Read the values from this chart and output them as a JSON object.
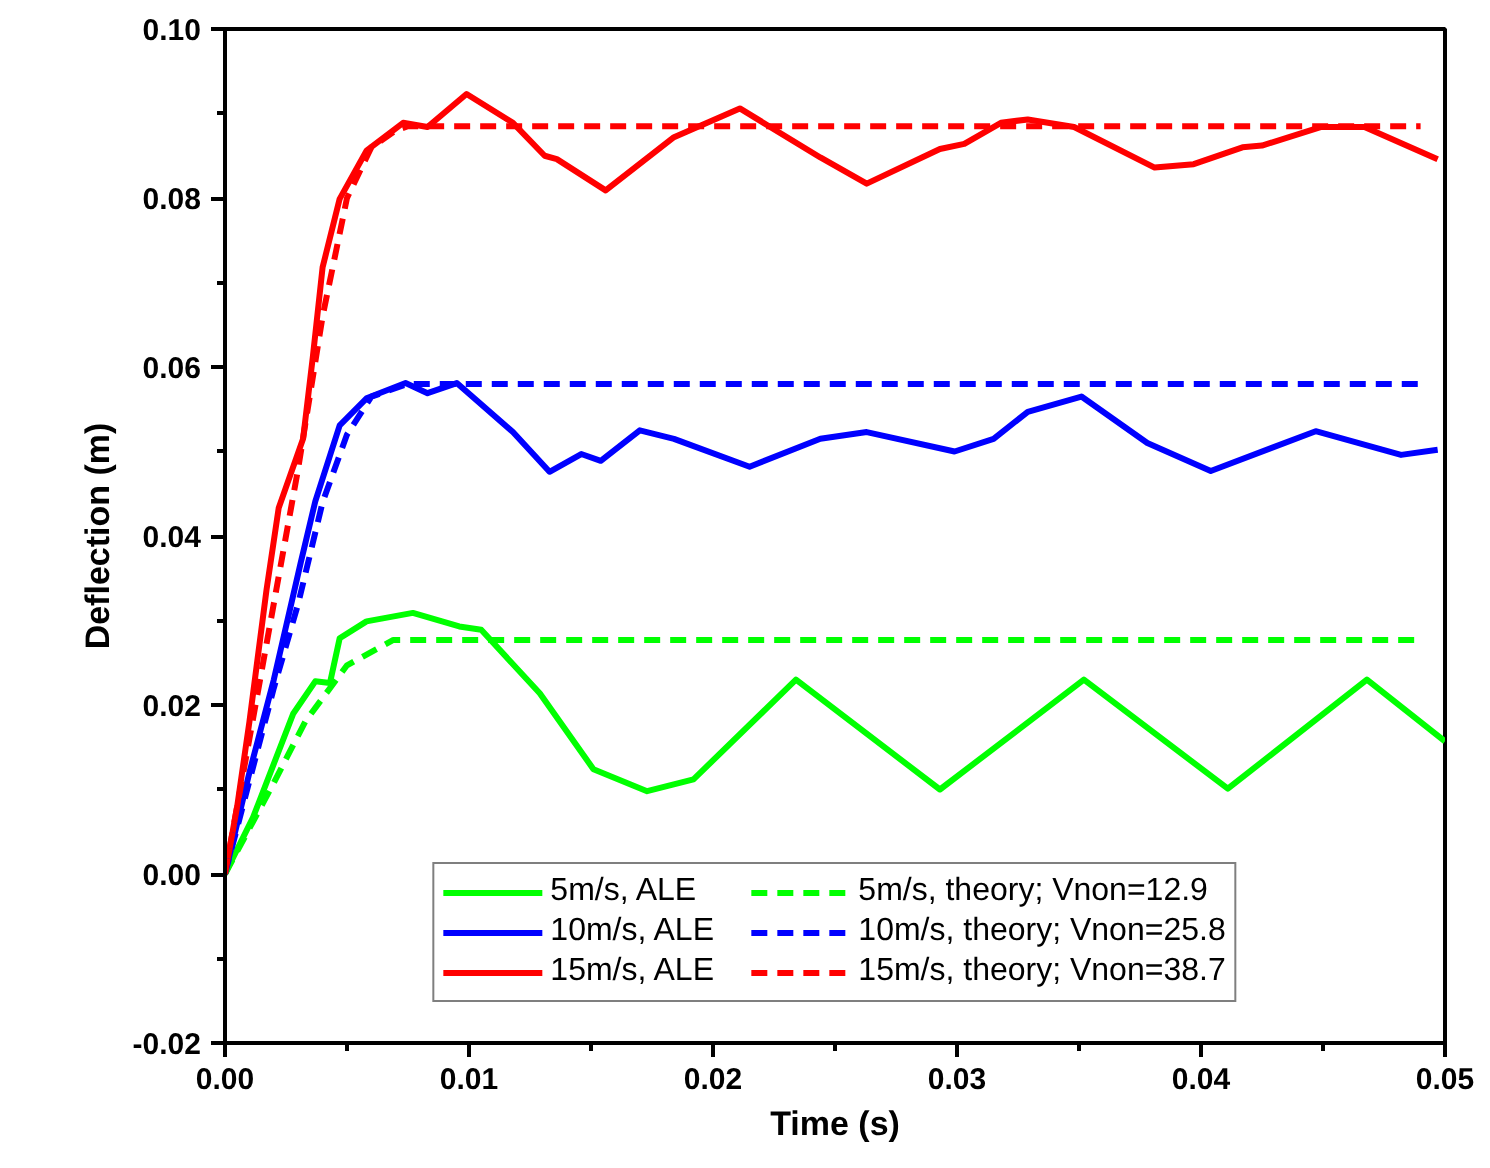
{
  "chart_data": {
    "type": "line",
    "xlabel": "Time (s)",
    "ylabel": "Deflection (m)",
    "xlim": [
      0,
      0.05
    ],
    "ylim": [
      -0.02,
      0.1
    ],
    "xticks": [
      {
        "value": 0,
        "label": "0.00"
      },
      0.01,
      0.02,
      0.03,
      0.04,
      0.05
    ],
    "yticks": [
      {
        "value": -0.02,
        "label": "-0.02"
      },
      {
        "value": 0,
        "label": "0.00"
      },
      0.02,
      0.04,
      0.06,
      0.08,
      {
        "value": 0.1,
        "label": "0.10"
      }
    ],
    "grid": false,
    "legend": "bottom",
    "marker": "none",
    "series": [
      {
        "name": "5m/s, ALE",
        "color": "#00ff00",
        "line_style": "solid",
        "x": [
          0,
          0.00115,
          0.0028,
          0.0037,
          0.0043,
          0.0047,
          0.0058,
          0.0077,
          0.0096,
          0.0105,
          0.0129,
          0.0151,
          0.0173,
          0.0192,
          0.0234,
          0.0293,
          0.0352,
          0.0411,
          0.0468,
          0.05
        ],
        "values": [
          0,
          0.0067,
          0.019,
          0.0228,
          0.0226,
          0.0279,
          0.0299,
          0.0309,
          0.0293,
          0.0289,
          0.0214,
          0.0124,
          0.0098,
          0.0112,
          0.023,
          0.01,
          0.023,
          0.0101,
          0.023,
          0.0157
        ]
      },
      {
        "name": "10m/s, ALE",
        "color": "#0000ff",
        "line_style": "solid",
        "x": [
          0,
          0.001,
          0.002,
          0.0031,
          0.0037,
          0.0047,
          0.0058,
          0.0074,
          0.0083,
          0.0095,
          0.0118,
          0.0133,
          0.0146,
          0.0154,
          0.017,
          0.0184,
          0.0215,
          0.0244,
          0.0263,
          0.0299,
          0.0315,
          0.0329,
          0.0351,
          0.0378,
          0.0404,
          0.0447,
          0.0482,
          0.0497
        ],
        "values": [
          0,
          0.012,
          0.023,
          0.0368,
          0.0441,
          0.0531,
          0.0563,
          0.0581,
          0.0569,
          0.0581,
          0.0523,
          0.0476,
          0.0497,
          0.0489,
          0.0525,
          0.0515,
          0.0482,
          0.0515,
          0.0523,
          0.05,
          0.0515,
          0.0547,
          0.0565,
          0.051,
          0.0477,
          0.0524,
          0.0496,
          0.0502
        ]
      },
      {
        "name": "15m/s, ALE",
        "color": "#ff0000",
        "line_style": "solid",
        "x": [
          0,
          0.0005,
          0.001,
          0.0017,
          0.0022,
          0.0032,
          0.0036,
          0.004,
          0.0047,
          0.0058,
          0.0073,
          0.0083,
          0.0099,
          0.0118,
          0.0131,
          0.0136,
          0.0156,
          0.0184,
          0.0211,
          0.0244,
          0.0263,
          0.0293,
          0.0303,
          0.0318,
          0.0329,
          0.0348,
          0.0381,
          0.0397,
          0.0417,
          0.0425,
          0.0449,
          0.0467,
          0.0497
        ],
        "values": [
          0,
          0.008,
          0.018,
          0.0336,
          0.0433,
          0.0515,
          0.0612,
          0.0718,
          0.0799,
          0.0856,
          0.0889,
          0.0884,
          0.0923,
          0.0889,
          0.085,
          0.0846,
          0.0809,
          0.0872,
          0.0906,
          0.0848,
          0.0817,
          0.0858,
          0.0864,
          0.0889,
          0.0893,
          0.0884,
          0.0836,
          0.084,
          0.086,
          0.0862,
          0.0884,
          0.0884,
          0.0846
        ]
      },
      {
        "name": "5m/s, theory; Vnon=12.9",
        "color": "#00ff00",
        "line_style": "dashed",
        "x": [
          0,
          0.002,
          0.0033,
          0.005,
          0.0069,
          0.049
        ],
        "values": [
          0,
          0.0108,
          0.0181,
          0.0247,
          0.0277,
          0.0277
        ]
      },
      {
        "name": "10m/s, theory; Vnon=25.8",
        "color": "#0000ff",
        "line_style": "dashed",
        "x": [
          0,
          0.001,
          0.002,
          0.003,
          0.004,
          0.005,
          0.006,
          0.0075,
          0.049
        ],
        "values": [
          0,
          0.011,
          0.022,
          0.032,
          0.044,
          0.052,
          0.0565,
          0.058,
          0.058
        ]
      },
      {
        "name": "15m/s, theory; Vnon=38.7",
        "color": "#ff0000",
        "line_style": "dashed",
        "x": [
          0,
          0.001,
          0.002,
          0.003,
          0.004,
          0.005,
          0.006,
          0.007,
          0.0075,
          0.049
        ],
        "values": [
          0,
          0.016,
          0.032,
          0.048,
          0.066,
          0.08,
          0.086,
          0.088,
          0.0885,
          0.0885
        ]
      }
    ]
  }
}
